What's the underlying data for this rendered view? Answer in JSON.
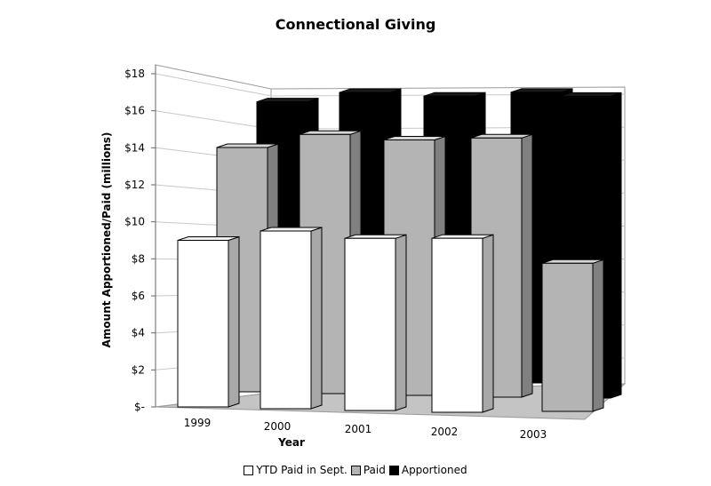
{
  "chart_data": {
    "type": "bar",
    "title": "Connectional Giving",
    "xlabel": "Year",
    "ylabel": "Amount Apportioned/Paid (millions)",
    "categories": [
      "1999",
      "2000",
      "2001",
      "2002",
      "2003"
    ],
    "ytick_labels": [
      "$-",
      "$2",
      "$4",
      "$6",
      "$8",
      "$10",
      "$12",
      "$14",
      "$16",
      "$18"
    ],
    "ylim": [
      0,
      18
    ],
    "grid": true,
    "legend_position": "bottom",
    "series": [
      {
        "name": "YTD Paid in Sept.",
        "color": "#ffffff",
        "values": [
          9.0,
          9.6,
          9.3,
          9.4,
          null
        ]
      },
      {
        "name": "Paid",
        "color": "#b4b4b4",
        "values": [
          13.2,
          14.0,
          13.8,
          14.0,
          8.0
        ]
      },
      {
        "name": "Apportioned",
        "color": "#000000",
        "values": [
          14.9,
          15.5,
          15.4,
          15.7,
          16.3
        ]
      }
    ]
  }
}
